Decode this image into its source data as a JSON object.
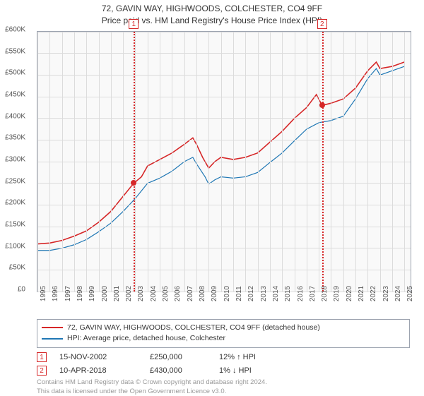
{
  "title_line1": "72, GAVIN WAY, HIGHWOODS, COLCHESTER, CO4 9FF",
  "title_line2": "Price paid vs. HM Land Registry's House Price Index (HPI)",
  "chart": {
    "type": "line",
    "background_color": "#f9f9f9",
    "grid_color": "#dcdcdc",
    "border_color": "#9ca3af",
    "text_color": "#555555",
    "label_fontsize": 10,
    "x": {
      "min": 1995,
      "max": 2025.5,
      "ticks": [
        1995,
        1996,
        1997,
        1998,
        1999,
        2000,
        2001,
        2002,
        2003,
        2004,
        2005,
        2006,
        2007,
        2008,
        2009,
        2010,
        2011,
        2012,
        2013,
        2014,
        2015,
        2016,
        2017,
        2018,
        2019,
        2020,
        2021,
        2022,
        2023,
        2024,
        2025
      ]
    },
    "y": {
      "min": 0,
      "max": 600000,
      "ticks": [
        0,
        50000,
        100000,
        150000,
        200000,
        250000,
        300000,
        350000,
        400000,
        450000,
        500000,
        550000,
        600000
      ],
      "tick_labels": [
        "£0",
        "£50K",
        "£100K",
        "£150K",
        "£200K",
        "£250K",
        "£300K",
        "£350K",
        "£400K",
        "£450K",
        "£500K",
        "£550K",
        "£600K"
      ]
    },
    "series": [
      {
        "name": "property",
        "label": "72, GAVIN WAY, HIGHWOODS, COLCHESTER, CO4 9FF (detached house)",
        "color": "#d62728",
        "width": 1.6,
        "data": [
          [
            1995,
            110000
          ],
          [
            1996,
            112000
          ],
          [
            1997,
            118000
          ],
          [
            1998,
            128000
          ],
          [
            1999,
            140000
          ],
          [
            2000,
            160000
          ],
          [
            2001,
            185000
          ],
          [
            2002,
            220000
          ],
          [
            2002.87,
            250000
          ],
          [
            2003.5,
            265000
          ],
          [
            2004,
            290000
          ],
          [
            2005,
            305000
          ],
          [
            2006,
            320000
          ],
          [
            2007,
            340000
          ],
          [
            2007.7,
            355000
          ],
          [
            2008,
            340000
          ],
          [
            2008.5,
            310000
          ],
          [
            2009,
            285000
          ],
          [
            2009.5,
            300000
          ],
          [
            2010,
            310000
          ],
          [
            2011,
            305000
          ],
          [
            2012,
            310000
          ],
          [
            2013,
            320000
          ],
          [
            2014,
            345000
          ],
          [
            2015,
            370000
          ],
          [
            2016,
            400000
          ],
          [
            2017,
            425000
          ],
          [
            2017.8,
            455000
          ],
          [
            2018.27,
            430000
          ],
          [
            2019,
            435000
          ],
          [
            2020,
            445000
          ],
          [
            2021,
            470000
          ],
          [
            2022,
            510000
          ],
          [
            2022.7,
            530000
          ],
          [
            2023,
            515000
          ],
          [
            2024,
            520000
          ],
          [
            2025,
            530000
          ]
        ]
      },
      {
        "name": "hpi",
        "label": "HPI: Average price, detached house, Colchester",
        "color": "#1f77b4",
        "width": 1.2,
        "data": [
          [
            1995,
            95000
          ],
          [
            1996,
            95000
          ],
          [
            1997,
            100000
          ],
          [
            1998,
            108000
          ],
          [
            1999,
            120000
          ],
          [
            2000,
            138000
          ],
          [
            2001,
            158000
          ],
          [
            2002,
            185000
          ],
          [
            2003,
            215000
          ],
          [
            2004,
            250000
          ],
          [
            2005,
            262000
          ],
          [
            2006,
            278000
          ],
          [
            2007,
            300000
          ],
          [
            2007.7,
            310000
          ],
          [
            2008,
            295000
          ],
          [
            2008.7,
            265000
          ],
          [
            2009,
            248000
          ],
          [
            2009.5,
            258000
          ],
          [
            2010,
            265000
          ],
          [
            2011,
            262000
          ],
          [
            2012,
            265000
          ],
          [
            2013,
            275000
          ],
          [
            2014,
            298000
          ],
          [
            2015,
            320000
          ],
          [
            2016,
            348000
          ],
          [
            2017,
            375000
          ],
          [
            2018,
            390000
          ],
          [
            2019,
            395000
          ],
          [
            2020,
            405000
          ],
          [
            2021,
            445000
          ],
          [
            2022,
            492000
          ],
          [
            2022.7,
            515000
          ],
          [
            2023,
            500000
          ],
          [
            2024,
            510000
          ],
          [
            2025,
            520000
          ]
        ]
      }
    ],
    "markers": [
      {
        "n": "1",
        "x": 2002.87,
        "y": 250000
      },
      {
        "n": "2",
        "x": 2018.27,
        "y": 430000
      }
    ],
    "marker_line_color": "#d62728",
    "marker_dot_color": "#d62728"
  },
  "transactions": [
    {
      "n": "1",
      "date": "15-NOV-2002",
      "price": "£250,000",
      "delta": "12% ↑ HPI"
    },
    {
      "n": "2",
      "date": "10-APR-2018",
      "price": "£430,000",
      "delta": "1% ↓ HPI"
    }
  ],
  "copyright_line1": "Contains HM Land Registry data © Crown copyright and database right 2024.",
  "copyright_line2": "This data is licensed under the Open Government Licence v3.0."
}
